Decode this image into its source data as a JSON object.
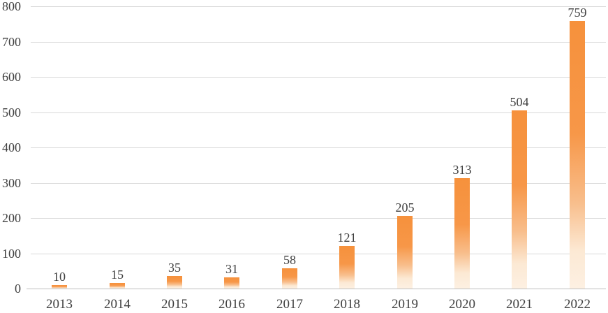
{
  "chart_data": {
    "type": "bar",
    "categories": [
      "2013",
      "2014",
      "2015",
      "2016",
      "2017",
      "2018",
      "2019",
      "2020",
      "2021",
      "2022"
    ],
    "values": [
      10,
      15,
      35,
      31,
      58,
      121,
      205,
      313,
      504,
      759
    ],
    "title": "",
    "xlabel": "",
    "ylabel": "",
    "ylim": [
      0,
      800
    ],
    "ytick_step": 100,
    "ytick_labels": [
      "0",
      "100",
      "200",
      "300",
      "400",
      "500",
      "600",
      "700",
      "800"
    ],
    "grid": true,
    "legend": false,
    "data_labels": true,
    "colors": {
      "bar_gradient_top": "#F6913C",
      "bar_gradient_mid": "#F79748",
      "bar_gradient_low": "#F8BE8C",
      "bar_gradient_pale": "#FCE9D4",
      "bar_gradient_bottom": "#FDF0E2",
      "gridline": "#D9D9D9",
      "axis_line": "#BFBFBF",
      "text": "#3F3F3F"
    }
  }
}
